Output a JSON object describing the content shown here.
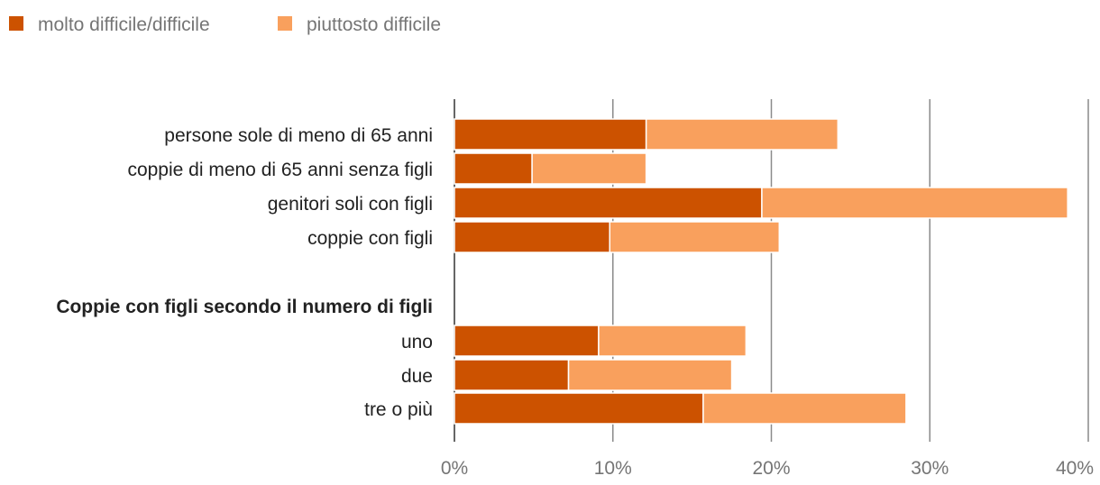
{
  "chart_data": {
    "type": "bar",
    "orientation": "horizontal",
    "stacked": true,
    "categories": [
      "persone sole di meno di 65 anni",
      "coppie di meno di 65 anni senza figli",
      "genitori soli con figli",
      "coppie con figli",
      "Coppie con figli secondo il numero di figli",
      "uno",
      "due",
      "tre o più"
    ],
    "category_bold": [
      false,
      false,
      false,
      false,
      true,
      false,
      false,
      false
    ],
    "series": [
      {
        "name": "molto difficile/difficile",
        "color": "#cc5200",
        "values": [
          12.1,
          4.9,
          19.4,
          9.8,
          null,
          9.1,
          7.2,
          15.7
        ]
      },
      {
        "name": "piuttosto difficile",
        "color": "#f9a05d",
        "values": [
          12.1,
          7.2,
          19.3,
          10.7,
          null,
          9.3,
          10.3,
          12.8
        ]
      }
    ],
    "xlim": [
      0,
      40
    ],
    "xticks": [
      "0%",
      "10%",
      "20%",
      "30%",
      "40%"
    ],
    "xtick_values": [
      0,
      10,
      20,
      30,
      40
    ],
    "grid": true,
    "legend_position": "top-left"
  }
}
